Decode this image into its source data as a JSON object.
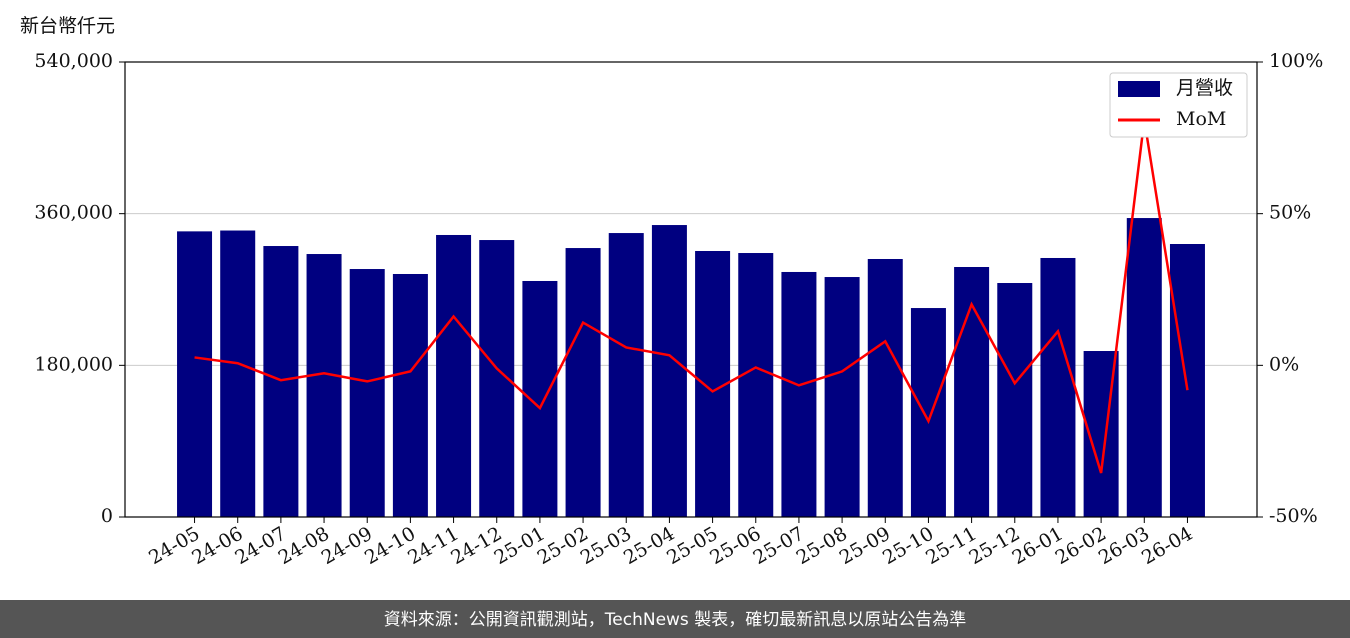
{
  "chart_data": {
    "type": "bar",
    "y_label": "新台幣仟元",
    "source": "資料來源：公開資訊觀測站，TechNews 製表，確切最新訊息以原站公告為準",
    "categories": [
      "24-05",
      "24-06",
      "24-07",
      "24-08",
      "24-09",
      "24-10",
      "24-11",
      "24-12",
      "25-01",
      "25-02",
      "25-03",
      "25-04",
      "25-05",
      "25-06",
      "25-07",
      "25-08",
      "25-09",
      "25-10",
      "25-11",
      "25-12",
      "26-01",
      "26-02",
      "26-03",
      "26-04"
    ],
    "series": [
      {
        "name": "月營收",
        "color": "#000080",
        "type": "bar",
        "values": [
          339000,
          340000,
          321600,
          312100,
          294300,
          288400,
          334700,
          328700,
          280100,
          319200,
          337000,
          346500,
          315700,
          313300,
          290800,
          284800,
          306200,
          248000,
          296700,
          277700,
          307400,
          197000,
          354800,
          324000
        ]
      },
      {
        "name": "MoM",
        "color": "#ff0000",
        "type": "line",
        "axis": "y2",
        "values": [
          2.6,
          0.7,
          -4.9,
          -2.6,
          -5.3,
          -2.0,
          16.1,
          -1.0,
          -14.1,
          14.1,
          5.9,
          3.3,
          -8.6,
          -0.7,
          -6.6,
          -2.0,
          7.9,
          -18.4,
          20.1,
          -5.9,
          11.2,
          -35.5,
          80.9,
          -8.2
        ]
      }
    ],
    "ylim": [
      0,
      540000
    ],
    "yticks": [
      0,
      {
        "value": 180000,
        "label": "180,000"
      },
      {
        "value": 360000,
        "label": "360,000"
      },
      {
        "value": 540000,
        "label": "540,000"
      }
    ],
    "y2lim": [
      -50,
      100
    ],
    "y2ticks": [
      {
        "value": -50,
        "label": "-50%"
      },
      {
        "value": 0,
        "label": "0%"
      },
      {
        "value": 50,
        "label": "50%"
      },
      {
        "value": 100,
        "label": "100%"
      }
    ],
    "grid": true,
    "legend": "upper right"
  }
}
